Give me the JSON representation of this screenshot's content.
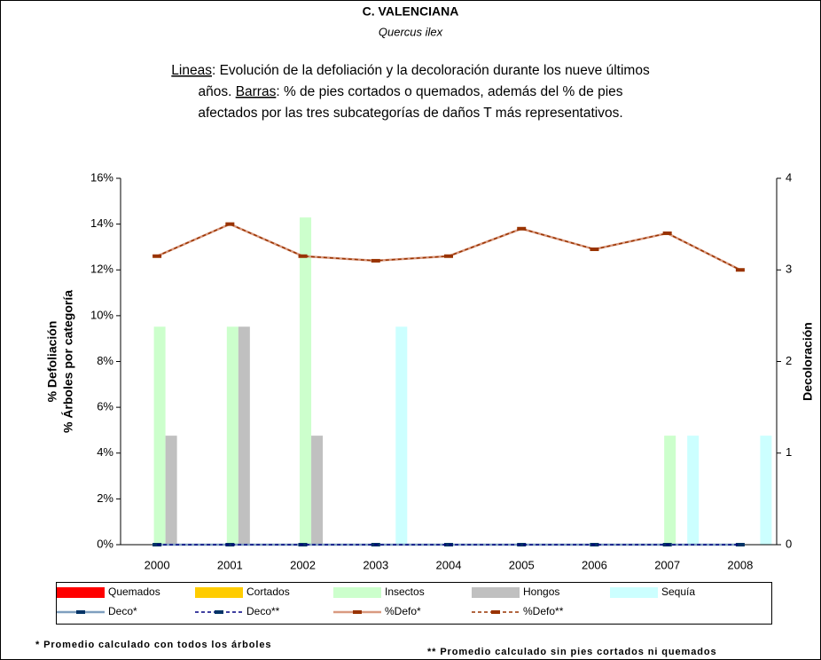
{
  "chart_data": {
    "type": "bar",
    "title": "C. VALENCIANA",
    "subtitle": "Quercus ilex",
    "description": [
      [
        {
          "text": "Lineas",
          "underline": true
        },
        {
          "text": ": Evolución de la defoliación y la decoloración durante los nueve últimos",
          "underline": false
        }
      ],
      [
        {
          "text": "años. ",
          "underline": false
        },
        {
          "text": "Barras",
          "underline": true
        },
        {
          "text": ": % de pies cortados o quemados, además del % de pies",
          "underline": false
        }
      ],
      [
        {
          "text": "afectados por las tres subcategorías de daños T más representativos.",
          "underline": false
        }
      ]
    ],
    "y_label": [
      "% Defoliación",
      "% Árboles por categoría"
    ],
    "y2_label": "Decoloración",
    "categories": [
      "2000",
      "2001",
      "2002",
      "2003",
      "2004",
      "2005",
      "2006",
      "2007",
      "2008"
    ],
    "ylim": [
      0,
      16
    ],
    "yticks": [
      {
        "value": 0,
        "label": "0%"
      },
      {
        "value": 2,
        "label": "2%"
      },
      {
        "value": 4,
        "label": "4%"
      },
      {
        "value": 6,
        "label": "6%"
      },
      {
        "value": 8,
        "label": "8%"
      },
      {
        "value": 10,
        "label": "10%"
      },
      {
        "value": 12,
        "label": "12%"
      },
      {
        "value": 14,
        "label": "14%"
      },
      {
        "value": 16,
        "label": "16%"
      }
    ],
    "y2lim": [
      0,
      4
    ],
    "y2ticks": [
      0,
      1,
      2,
      3,
      4
    ],
    "series": [
      {
        "name": "Quemados",
        "kind": "bar",
        "color": "#ff0000",
        "values": [
          0,
          0,
          0,
          0,
          0,
          0,
          0,
          0,
          0
        ]
      },
      {
        "name": "Cortados",
        "kind": "bar",
        "color": "#ffcc00",
        "values": [
          0,
          0,
          0,
          0,
          0,
          0,
          0,
          0,
          0
        ]
      },
      {
        "name": "Insectos",
        "kind": "bar",
        "color": "#ccffcc",
        "values": [
          9.52,
          9.52,
          14.29,
          0,
          0,
          0,
          0,
          4.76,
          0
        ]
      },
      {
        "name": "Hongos",
        "kind": "bar",
        "color": "#c0c0c0",
        "values": [
          4.76,
          9.52,
          4.76,
          0,
          0,
          0,
          0,
          0,
          0
        ]
      },
      {
        "name": "Sequía",
        "kind": "bar",
        "color": "#ccffff",
        "values": [
          0,
          0,
          0,
          9.52,
          0,
          0,
          0,
          4.76,
          4.76
        ]
      },
      {
        "name": "Deco*",
        "kind": "line",
        "axis": "y2",
        "color": "#7f9fbf",
        "marker_color": "#003366",
        "dashed": false,
        "values": [
          0,
          0,
          0,
          0,
          0,
          0,
          0,
          0,
          0
        ]
      },
      {
        "name": "Deco**",
        "kind": "line",
        "axis": "y2",
        "color": "#000080",
        "marker_color": "#003366",
        "dashed": true,
        "values": [
          0,
          0,
          0,
          0,
          0,
          0,
          0,
          0,
          0
        ]
      },
      {
        "name": "%Defo*",
        "kind": "line",
        "color": "#d99a80",
        "marker_color": "#993300",
        "dashed": false,
        "values": [
          12.6,
          14.0,
          12.6,
          12.4,
          12.6,
          13.8,
          12.9,
          13.6,
          12.0
        ]
      },
      {
        "name": "%Defo**",
        "kind": "line",
        "color": "#993300",
        "marker_color": "#993300",
        "dashed": true,
        "values": [
          12.6,
          14.0,
          12.6,
          12.4,
          12.6,
          13.8,
          12.9,
          13.6,
          12.0
        ]
      }
    ],
    "footnotes": [
      "* Promedio calculado con todos los árboles",
      "** Promedio calculado sin pies cortados ni quemados"
    ]
  }
}
